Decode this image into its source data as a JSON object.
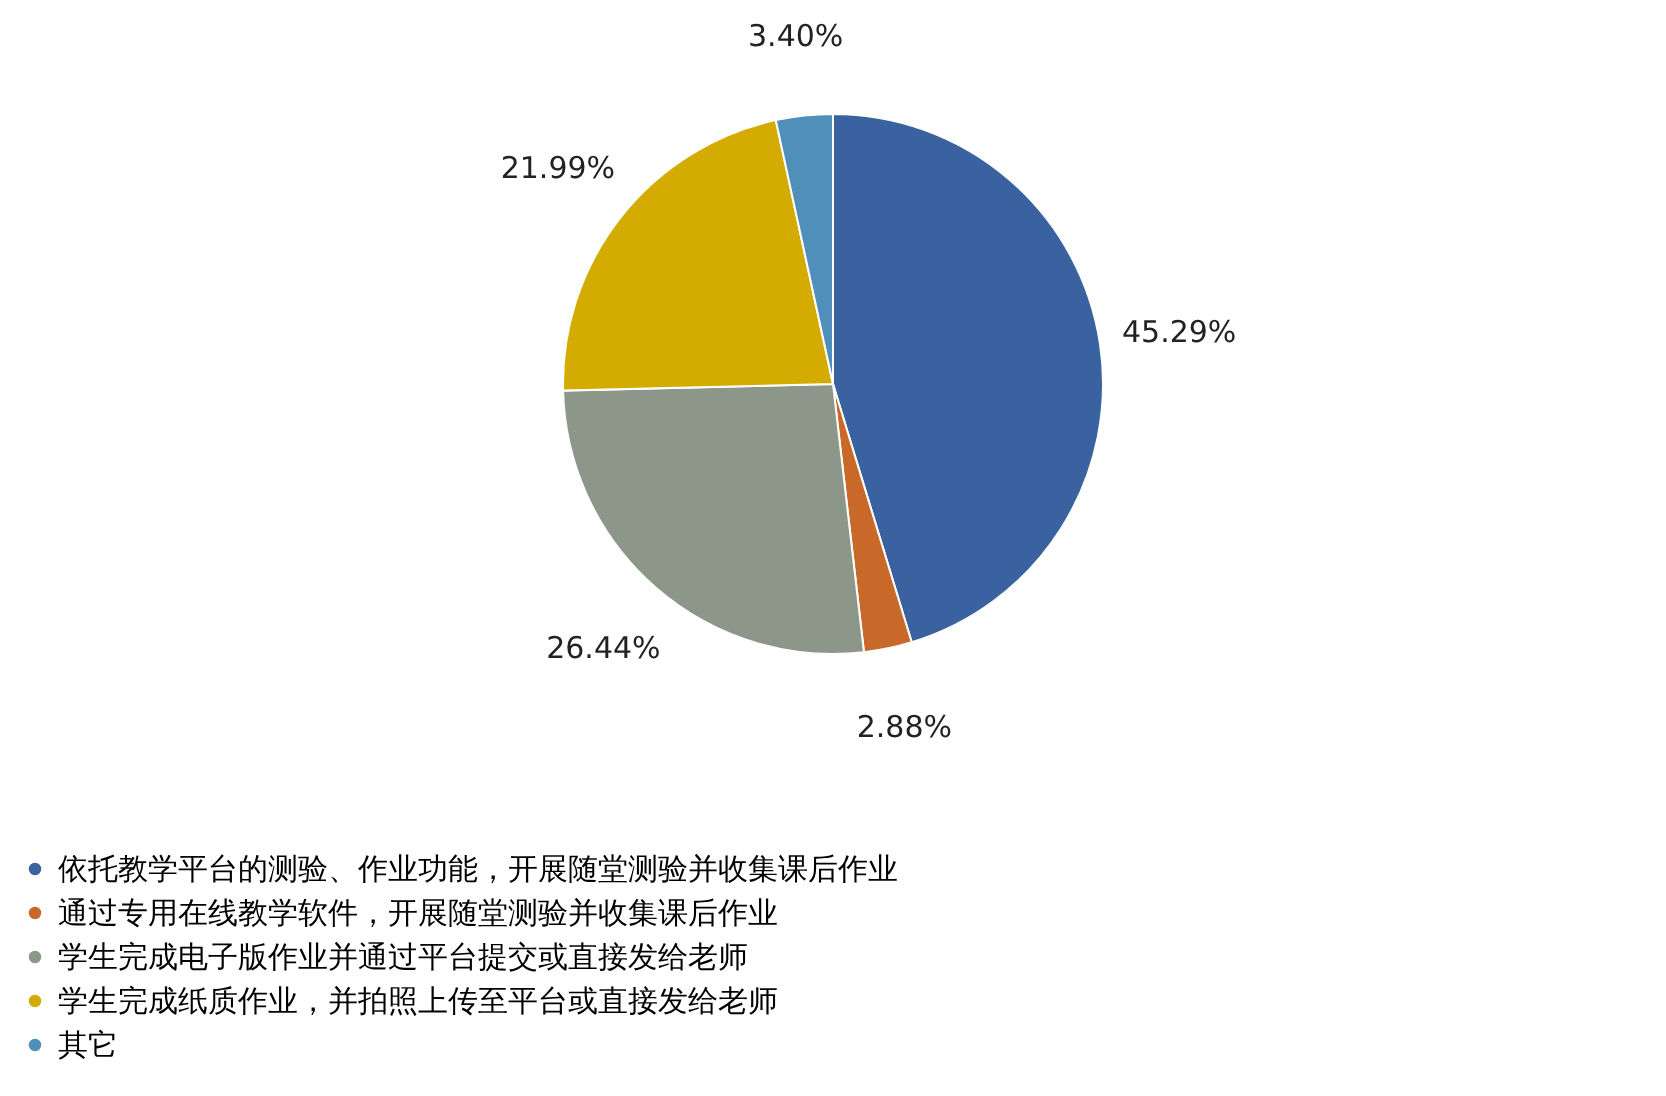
{
  "chart_data": {
    "type": "pie",
    "categories": [
      "依托教学平台的测验、作业功能，开展随堂测验并收集课后作业",
      "通过专用在线教学软件，开展随堂测验并收集课后作业",
      "学生完成电子版作业并通过平台提交或直接发给老师",
      "学生完成纸质作业，并拍照上传至平台或直接发给老师",
      "其它"
    ],
    "values": [
      45.29,
      2.88,
      26.44,
      21.99,
      3.4
    ],
    "value_labels": [
      "45.29%",
      "2.88%",
      "26.44%",
      "21.99%",
      "3.40%"
    ],
    "colors": [
      "#3a62a0",
      "#c8692a",
      "#8c978a",
      "#d4ab00",
      "#4f8fba"
    ],
    "legend": "bottom"
  }
}
